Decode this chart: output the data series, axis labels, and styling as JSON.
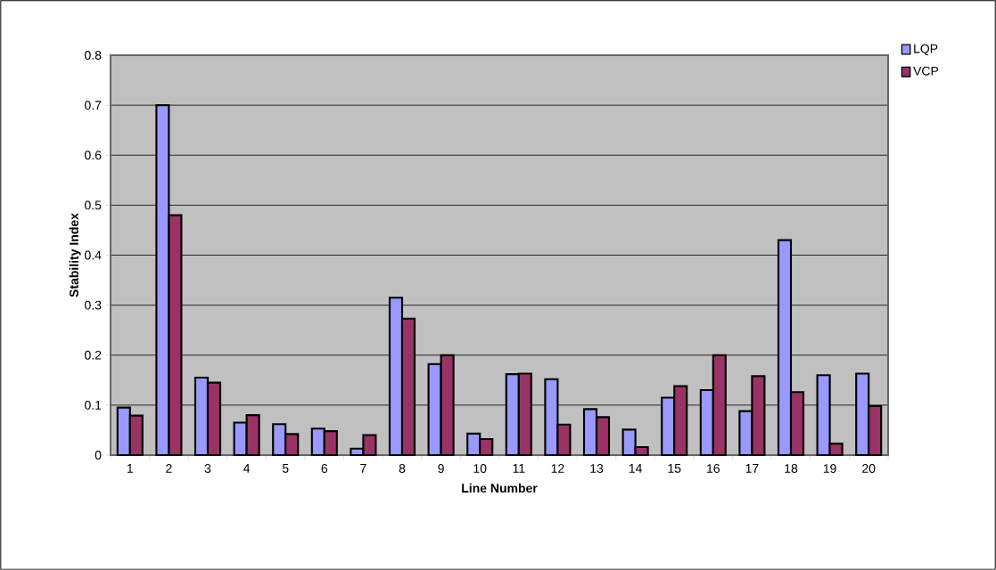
{
  "chart_data": {
    "type": "bar",
    "xlabel": "Line Number",
    "ylabel": "Stability Index",
    "categories": [
      "1",
      "2",
      "3",
      "4",
      "5",
      "6",
      "7",
      "8",
      "9",
      "10",
      "11",
      "12",
      "13",
      "14",
      "15",
      "16",
      "17",
      "18",
      "19",
      "20"
    ],
    "series": [
      {
        "name": "LQP",
        "color": "#9999ff",
        "values": [
          0.095,
          0.7,
          0.155,
          0.065,
          0.062,
          0.053,
          0.013,
          0.315,
          0.182,
          0.043,
          0.162,
          0.152,
          0.092,
          0.051,
          0.115,
          0.13,
          0.088,
          0.43,
          0.16,
          0.163
        ]
      },
      {
        "name": "VCP",
        "color": "#993366",
        "values": [
          0.079,
          0.48,
          0.145,
          0.08,
          0.042,
          0.048,
          0.04,
          0.273,
          0.2,
          0.032,
          0.163,
          0.061,
          0.076,
          0.016,
          0.138,
          0.2,
          0.158,
          0.126,
          0.023,
          0.098
        ]
      }
    ],
    "ylim": [
      0,
      0.8
    ],
    "yticks": [
      0,
      0.1,
      0.2,
      0.3,
      0.4,
      0.5,
      0.6,
      0.7,
      0.8
    ],
    "grid": "y",
    "legend": "top right"
  }
}
